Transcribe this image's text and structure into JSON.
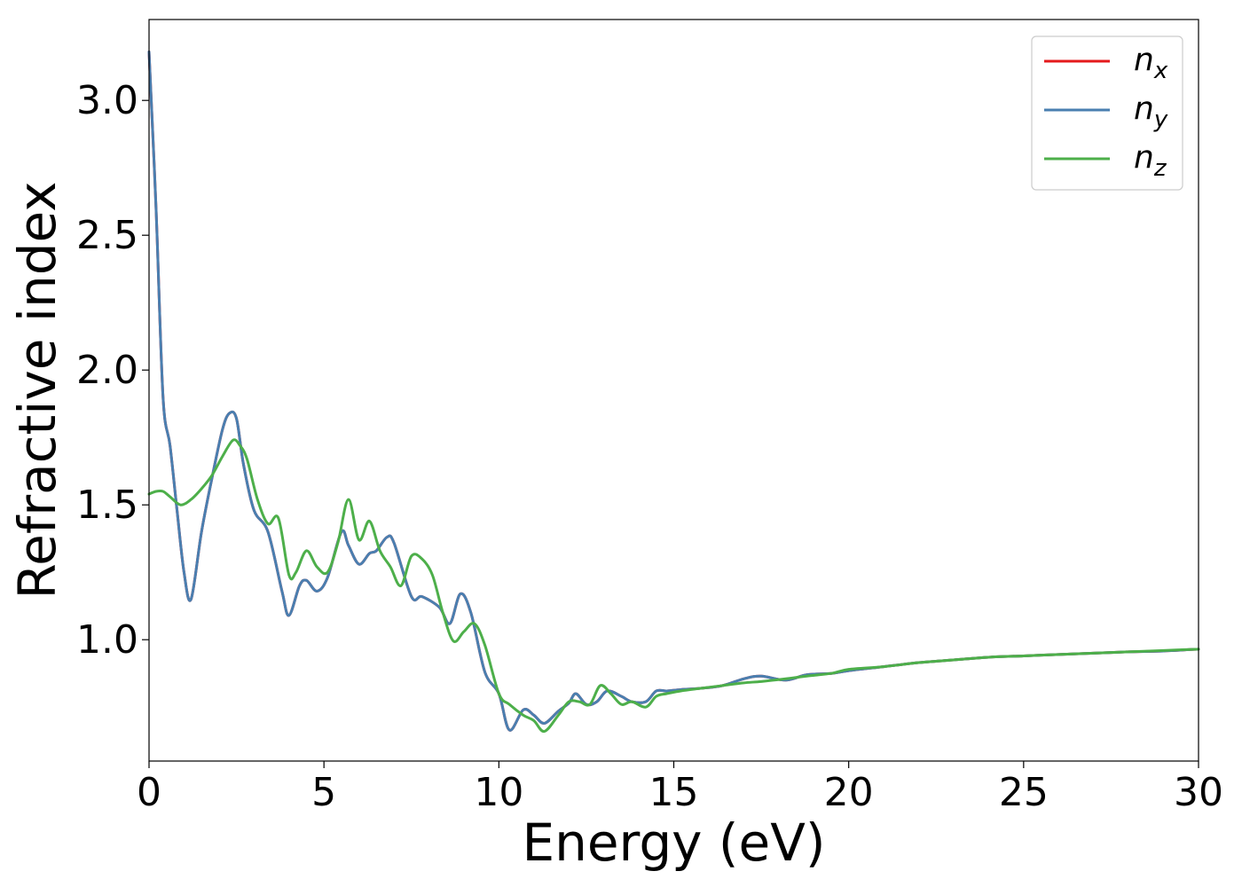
{
  "chart_data": {
    "type": "line",
    "title": "",
    "xlabel": "Energy (eV)",
    "ylabel": "Refractive index",
    "xlim": [
      0,
      30
    ],
    "ylim": [
      0.55,
      3.3
    ],
    "xticks": [
      0,
      5,
      10,
      15,
      20,
      25,
      30
    ],
    "xtick_labels": [
      "0",
      "5",
      "10",
      "15",
      "20",
      "25",
      "30"
    ],
    "yticks": [
      1.0,
      1.5,
      2.0,
      2.5,
      3.0
    ],
    "ytick_labels": [
      "1.0",
      "1.5",
      "2.0",
      "2.5",
      "3.0"
    ],
    "grid": false,
    "legend_position": "top-right",
    "series": [
      {
        "name": "n_x",
        "label_main": "n",
        "label_sub": "x",
        "color": "#e41a1c",
        "x": [
          0.0,
          0.2,
          0.4,
          0.6,
          0.8,
          1.0,
          1.2,
          1.5,
          1.8,
          2.1,
          2.3,
          2.5,
          2.7,
          3.0,
          3.4,
          3.8,
          4.0,
          4.3,
          4.5,
          4.8,
          5.1,
          5.5,
          5.7,
          6.0,
          6.3,
          6.5,
          6.8,
          7.0,
          7.5,
          7.8,
          8.3,
          8.6,
          8.9,
          9.2,
          9.6,
          10.0,
          10.3,
          10.7,
          11.0,
          11.3,
          11.7,
          12.0,
          12.2,
          12.5,
          12.8,
          13.1,
          13.5,
          13.8,
          14.2,
          14.5,
          14.8,
          15.2,
          15.8,
          16.4,
          17.0,
          17.5,
          18.2,
          18.8,
          19.5,
          20.0,
          21.0,
          22.0,
          23.0,
          24.0,
          25.0,
          26.0,
          27.0,
          28.0,
          29.0,
          30.0
        ],
        "values": [
          3.18,
          2.6,
          1.9,
          1.72,
          1.48,
          1.25,
          1.15,
          1.4,
          1.6,
          1.78,
          1.84,
          1.82,
          1.65,
          1.48,
          1.4,
          1.18,
          1.09,
          1.2,
          1.22,
          1.18,
          1.23,
          1.4,
          1.35,
          1.28,
          1.32,
          1.33,
          1.38,
          1.36,
          1.16,
          1.16,
          1.12,
          1.06,
          1.17,
          1.1,
          0.88,
          0.8,
          0.665,
          0.74,
          0.72,
          0.69,
          0.735,
          0.765,
          0.8,
          0.76,
          0.77,
          0.81,
          0.79,
          0.77,
          0.77,
          0.81,
          0.81,
          0.815,
          0.82,
          0.83,
          0.855,
          0.865,
          0.85,
          0.87,
          0.875,
          0.885,
          0.9,
          0.915,
          0.925,
          0.935,
          0.94,
          0.945,
          0.95,
          0.955,
          0.958,
          0.965
        ]
      },
      {
        "name": "n_y",
        "label_main": "n",
        "label_sub": "y",
        "color": "#4a7fb0",
        "x": [
          0.0,
          0.2,
          0.4,
          0.6,
          0.8,
          1.0,
          1.2,
          1.5,
          1.8,
          2.1,
          2.3,
          2.5,
          2.7,
          3.0,
          3.4,
          3.8,
          4.0,
          4.3,
          4.5,
          4.8,
          5.1,
          5.5,
          5.7,
          6.0,
          6.3,
          6.5,
          6.8,
          7.0,
          7.5,
          7.8,
          8.3,
          8.6,
          8.9,
          9.2,
          9.6,
          10.0,
          10.3,
          10.7,
          11.0,
          11.3,
          11.7,
          12.0,
          12.2,
          12.5,
          12.8,
          13.1,
          13.5,
          13.8,
          14.2,
          14.5,
          14.8,
          15.2,
          15.8,
          16.4,
          17.0,
          17.5,
          18.2,
          18.8,
          19.5,
          20.0,
          21.0,
          22.0,
          23.0,
          24.0,
          25.0,
          26.0,
          27.0,
          28.0,
          29.0,
          30.0
        ],
        "values": [
          3.18,
          2.6,
          1.9,
          1.72,
          1.48,
          1.25,
          1.15,
          1.4,
          1.6,
          1.78,
          1.84,
          1.82,
          1.65,
          1.48,
          1.4,
          1.18,
          1.09,
          1.2,
          1.22,
          1.18,
          1.23,
          1.4,
          1.35,
          1.28,
          1.32,
          1.33,
          1.38,
          1.36,
          1.16,
          1.16,
          1.12,
          1.06,
          1.17,
          1.1,
          0.88,
          0.8,
          0.665,
          0.74,
          0.72,
          0.69,
          0.735,
          0.765,
          0.8,
          0.76,
          0.77,
          0.81,
          0.79,
          0.77,
          0.77,
          0.81,
          0.81,
          0.815,
          0.82,
          0.83,
          0.855,
          0.865,
          0.85,
          0.87,
          0.875,
          0.885,
          0.9,
          0.915,
          0.925,
          0.935,
          0.94,
          0.945,
          0.95,
          0.955,
          0.958,
          0.965
        ]
      },
      {
        "name": "n_z",
        "label_main": "n",
        "label_sub": "z",
        "color": "#4daf4a",
        "x": [
          0.0,
          0.2,
          0.4,
          0.6,
          0.9,
          1.2,
          1.5,
          1.8,
          2.1,
          2.4,
          2.6,
          2.8,
          3.1,
          3.4,
          3.7,
          4.0,
          4.2,
          4.5,
          4.8,
          5.1,
          5.4,
          5.7,
          6.0,
          6.3,
          6.6,
          6.9,
          7.2,
          7.5,
          7.8,
          8.1,
          8.4,
          8.7,
          9.0,
          9.3,
          9.6,
          10.0,
          10.3,
          10.7,
          11.0,
          11.3,
          11.7,
          12.0,
          12.3,
          12.6,
          12.9,
          13.2,
          13.5,
          13.8,
          14.2,
          14.5,
          14.8,
          15.2,
          15.8,
          16.4,
          17.0,
          17.5,
          18.2,
          18.8,
          19.5,
          20.0,
          21.0,
          22.0,
          23.0,
          24.0,
          25.0,
          26.0,
          27.0,
          28.0,
          29.0,
          30.0
        ],
        "values": [
          1.54,
          1.55,
          1.55,
          1.53,
          1.5,
          1.52,
          1.56,
          1.61,
          1.68,
          1.74,
          1.72,
          1.67,
          1.52,
          1.43,
          1.45,
          1.24,
          1.25,
          1.33,
          1.27,
          1.25,
          1.36,
          1.52,
          1.37,
          1.44,
          1.33,
          1.27,
          1.2,
          1.31,
          1.3,
          1.24,
          1.1,
          0.995,
          1.03,
          1.06,
          0.98,
          0.8,
          0.76,
          0.72,
          0.7,
          0.66,
          0.72,
          0.77,
          0.77,
          0.76,
          0.83,
          0.8,
          0.76,
          0.77,
          0.75,
          0.79,
          0.8,
          0.81,
          0.82,
          0.83,
          0.84,
          0.845,
          0.855,
          0.865,
          0.875,
          0.89,
          0.9,
          0.915,
          0.925,
          0.935,
          0.94,
          0.945,
          0.95,
          0.955,
          0.96,
          0.965
        ]
      }
    ]
  }
}
